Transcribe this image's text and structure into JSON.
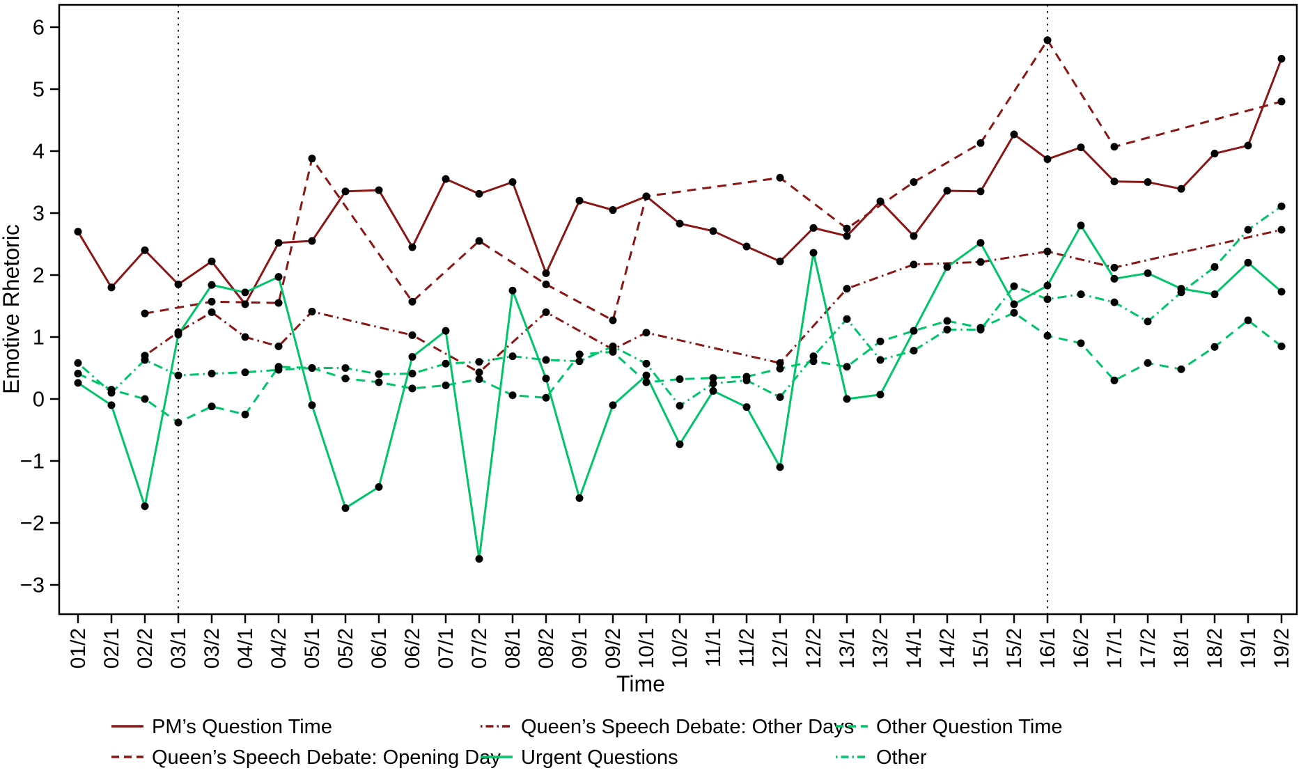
{
  "chart_data": {
    "type": "line",
    "title": "",
    "xlabel": "Time",
    "ylabel": "Emotive Rhetoric",
    "x_categories": [
      "01/2",
      "02/1",
      "02/2",
      "03/1",
      "03/2",
      "04/1",
      "04/2",
      "05/1",
      "05/2",
      "06/1",
      "06/2",
      "07/1",
      "07/2",
      "08/1",
      "08/2",
      "09/1",
      "09/2",
      "10/1",
      "10/2",
      "11/1",
      "11/2",
      "12/1",
      "12/2",
      "13/1",
      "13/2",
      "14/1",
      "14/2",
      "15/1",
      "15/2",
      "16/1",
      "16/2",
      "17/1",
      "17/2",
      "18/1",
      "18/2",
      "19/1",
      "19/2"
    ],
    "y_tick_labels": [
      "6",
      "5",
      "4",
      "3",
      "2",
      "1",
      "0",
      "−1",
      "−2",
      "−3"
    ],
    "y_ticks": [
      6,
      5,
      4,
      3,
      2,
      1,
      0,
      -1,
      -2,
      -3
    ],
    "ylim": [
      -3.45,
      6.36
    ],
    "grid": false,
    "legend_position": "bottom",
    "reference_lines": [
      "03/1",
      "16/1"
    ],
    "axis_color": "#000000",
    "marker_color": "#000000",
    "series": [
      {
        "name": "PM’s Question Time",
        "color": "#8B1616",
        "style": "solid",
        "values": [
          2.7,
          1.8,
          2.4,
          1.85,
          2.22,
          1.53,
          2.52,
          2.55,
          3.35,
          3.37,
          2.45,
          3.55,
          3.31,
          3.5,
          2.03,
          3.2,
          3.05,
          3.27,
          2.83,
          2.71,
          2.46,
          2.22,
          2.76,
          2.63,
          3.19,
          2.63,
          3.36,
          3.35,
          4.27,
          3.87,
          4.06,
          3.51,
          3.5,
          3.39,
          3.96,
          4.09,
          5.49
        ]
      },
      {
        "name": "Queen’s Speech Debate: Opening Day",
        "color": "#8B1616",
        "style": "dashed",
        "values": [
          null,
          null,
          1.38,
          null,
          1.57,
          null,
          1.55,
          3.88,
          null,
          null,
          1.57,
          null,
          2.55,
          null,
          1.85,
          null,
          1.27,
          3.27,
          null,
          null,
          null,
          3.57,
          null,
          2.75,
          null,
          3.5,
          null,
          4.13,
          null,
          5.79,
          null,
          4.07,
          null,
          null,
          null,
          null,
          4.8
        ]
      },
      {
        "name": "Queen’s Speech Debate: Other Days",
        "color": "#8B1616",
        "style": "dashdot",
        "values": [
          null,
          null,
          0.7,
          1.08,
          1.4,
          1.0,
          0.85,
          1.41,
          null,
          null,
          1.03,
          null,
          0.43,
          null,
          1.4,
          null,
          0.8,
          1.07,
          null,
          null,
          null,
          0.58,
          null,
          1.78,
          null,
          2.17,
          null,
          2.21,
          null,
          2.38,
          null,
          2.12,
          null,
          null,
          null,
          null,
          2.73
        ]
      },
      {
        "name": "Urgent Questions",
        "color": "#00C46A",
        "style": "solid",
        "values": [
          0.26,
          -0.1,
          -1.73,
          1.04,
          1.84,
          1.72,
          1.97,
          -0.1,
          -1.76,
          -1.42,
          0.68,
          1.1,
          -2.58,
          1.75,
          0.33,
          -1.6,
          -0.1,
          0.38,
          -0.73,
          0.13,
          -0.13,
          -1.1,
          2.36,
          0.0,
          0.07,
          1.1,
          2.13,
          2.52,
          1.53,
          1.83,
          2.8,
          1.94,
          2.03,
          1.78,
          1.69,
          2.2,
          1.73
        ]
      },
      {
        "name": "Other Question Time",
        "color": "#00C46A",
        "style": "dashed",
        "values": [
          0.41,
          0.15,
          0.0,
          -0.38,
          -0.12,
          -0.25,
          0.52,
          0.5,
          0.33,
          0.27,
          0.17,
          0.22,
          0.32,
          0.06,
          0.02,
          0.72,
          0.76,
          0.27,
          0.32,
          0.34,
          0.36,
          0.49,
          0.61,
          0.52,
          0.93,
          1.1,
          1.26,
          1.15,
          1.39,
          1.02,
          0.9,
          0.3,
          0.58,
          0.48,
          0.84,
          1.27,
          0.85
        ]
      },
      {
        "name": "Other",
        "color": "#00C46A",
        "style": "dashdot",
        "values": [
          0.58,
          0.1,
          0.63,
          0.38,
          0.41,
          0.43,
          0.47,
          0.5,
          0.5,
          0.4,
          0.41,
          0.57,
          0.6,
          0.69,
          0.63,
          0.61,
          0.85,
          0.57,
          -0.11,
          0.25,
          0.3,
          0.03,
          0.69,
          1.29,
          0.63,
          0.78,
          1.12,
          1.12,
          1.82,
          1.61,
          1.69,
          1.56,
          1.25,
          1.72,
          2.13,
          2.73,
          3.11
        ]
      }
    ],
    "legend_order": [
      [
        "PM’s Question Time",
        "Queen’s Speech Debate: Opening Day"
      ],
      [
        "Queen’s Speech Debate: Other Days",
        "Urgent Questions"
      ],
      [
        "Other Question Time",
        "Other"
      ]
    ]
  }
}
